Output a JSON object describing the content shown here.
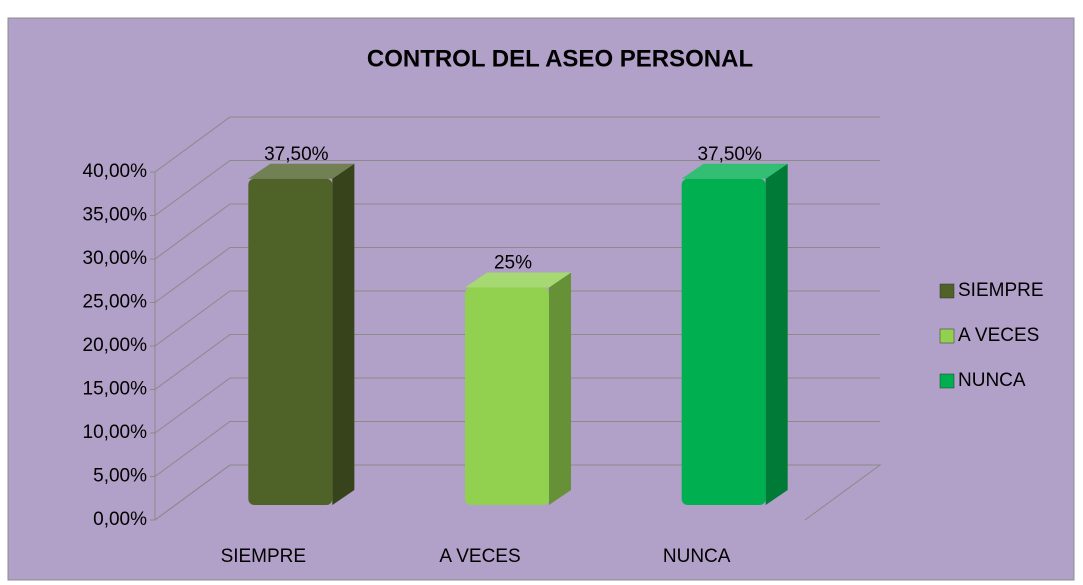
{
  "chart_data": {
    "type": "bar3d",
    "title": "CONTROL DEL ASEO PERSONAL",
    "categories": [
      "SIEMPRE",
      "A VECES",
      "NUNCA"
    ],
    "values": [
      37.5,
      25,
      37.5
    ],
    "value_labels": [
      "37,50%",
      "25%",
      "37,50%"
    ],
    "colors": [
      "#4f6228",
      "#92d050",
      "#00b050"
    ],
    "ylim": [
      0,
      40
    ],
    "yticks": [
      {
        "value": 0,
        "label": "0,00%"
      },
      {
        "value": 5,
        "label": "5,00%"
      },
      {
        "value": 10,
        "label": "10,00%"
      },
      {
        "value": 15,
        "label": "15,00%"
      },
      {
        "value": 20,
        "label": "20,00%"
      },
      {
        "value": 25,
        "label": "25,00%"
      },
      {
        "value": 30,
        "label": "30,00%"
      },
      {
        "value": 35,
        "label": "35,00%"
      },
      {
        "value": 40,
        "label": "40,00%"
      }
    ],
    "grid": true,
    "legend": "right"
  }
}
